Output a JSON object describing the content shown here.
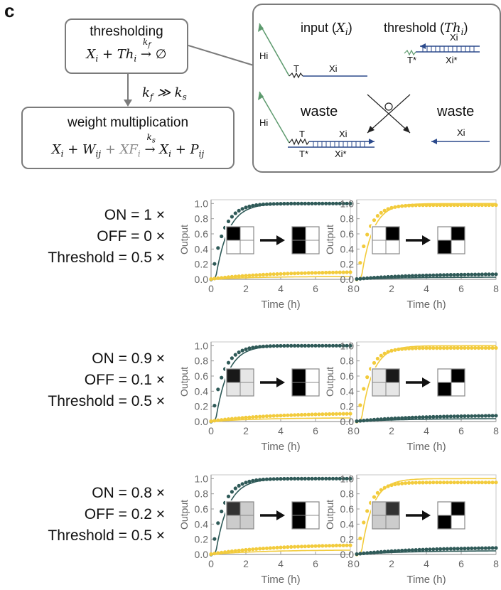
{
  "panel_letter": "c",
  "scheme": {
    "thresholding": {
      "title": "thresholding",
      "eq_pre": "X",
      "eq_rest": "i + Th",
      "rate": "k",
      "rate_sub": "f",
      "product": "∅"
    },
    "rate_relation": "k_f ≫ k_s",
    "weight_multiplication": {
      "title": "weight multiplication",
      "rate": "k",
      "rate_sub": "s"
    },
    "reaction": {
      "input_label": "input (X",
      "input_sub": "i",
      "threshold_label": "threshold (Th",
      "threshold_sub": "i",
      "waste_left": "waste",
      "waste_right": "waste",
      "hi": "Hi",
      "t": "T",
      "t_star": "T*",
      "xi": "Xi",
      "xi_star": "Xi*"
    }
  },
  "conditions": [
    {
      "on": "ON =   1 ×",
      "off": "OFF =   0 ×",
      "threshold": "Threshold = 0.5 ×"
    },
    {
      "on": "ON = 0.9 ×",
      "off": "OFF = 0.1 ×",
      "threshold": "Threshold = 0.5 ×"
    },
    {
      "on": "ON = 0.8 ×",
      "off": "OFF = 0.2 ×",
      "threshold": "Threshold = 0.5 ×"
    }
  ],
  "colors": {
    "dark": "#2f5a58",
    "yellow": "#f2cb3c",
    "axis": "#9a9a9a",
    "box": "#7b7b7b",
    "strand_blue": "#2b4a8c",
    "strand_green": "#5d9a6e"
  },
  "chart_data": [
    {
      "type": "line",
      "row": 1,
      "col": 1,
      "xlabel": "Time (h)",
      "ylabel": "Output",
      "xlim": [
        0,
        8
      ],
      "ylim": [
        0,
        1.05
      ],
      "xticks": [
        0,
        2,
        4,
        6,
        8
      ],
      "yticks": [
        0.0,
        0.2,
        0.4,
        0.6,
        0.8,
        1.0
      ],
      "series": [
        {
          "color": "dark",
          "rate": 1.45,
          "final": 1.0,
          "data_final": 1.0
        },
        {
          "color": "yellow",
          "rate": 0.12,
          "final": 0.04,
          "data_final": 0.1
        }
      ],
      "inset": {
        "input": [
          1,
          0,
          0,
          0
        ],
        "output": [
          1,
          0,
          1,
          0
        ]
      }
    },
    {
      "type": "line",
      "row": 1,
      "col": 2,
      "xlabel": "Time (h)",
      "ylabel": "Output",
      "xlim": [
        0,
        8
      ],
      "ylim": [
        0,
        1.05
      ],
      "xticks": [
        0,
        2,
        4,
        6,
        8
      ],
      "yticks": [
        0.0,
        0.2,
        0.4,
        0.6,
        0.8,
        1.0
      ],
      "series": [
        {
          "color": "yellow",
          "rate": 1.6,
          "final": 1.0,
          "data_final": 0.98
        },
        {
          "color": "dark",
          "rate": 0.12,
          "final": 0.03,
          "data_final": 0.07
        }
      ],
      "inset": {
        "input": [
          0,
          1,
          0,
          0
        ],
        "output": [
          0,
          1,
          1,
          0
        ]
      }
    },
    {
      "type": "line",
      "row": 2,
      "col": 1,
      "xlabel": "Time (h)",
      "ylabel": "Output",
      "xlim": [
        0,
        8
      ],
      "ylim": [
        0,
        1.05
      ],
      "xticks": [
        0,
        2,
        4,
        6,
        8
      ],
      "yticks": [
        0.0,
        0.2,
        0.4,
        0.6,
        0.8,
        1.0
      ],
      "series": [
        {
          "color": "dark",
          "rate": 1.5,
          "final": 1.0,
          "data_final": 1.0
        },
        {
          "color": "yellow",
          "rate": 0.12,
          "final": 0.05,
          "data_final": 0.11
        }
      ],
      "inset": {
        "input": [
          0.9,
          0.1,
          0.1,
          0.1
        ],
        "output": [
          1,
          0,
          1,
          0
        ]
      }
    },
    {
      "type": "line",
      "row": 2,
      "col": 2,
      "xlabel": "Time (h)",
      "ylabel": "Output",
      "xlim": [
        0,
        8
      ],
      "ylim": [
        0,
        1.05
      ],
      "xticks": [
        0,
        2,
        4,
        6,
        8
      ],
      "yticks": [
        0.0,
        0.2,
        0.4,
        0.6,
        0.8,
        1.0
      ],
      "series": [
        {
          "color": "yellow",
          "rate": 1.6,
          "final": 1.0,
          "data_final": 0.97
        },
        {
          "color": "dark",
          "rate": 0.12,
          "final": 0.04,
          "data_final": 0.08
        }
      ],
      "inset": {
        "input": [
          0.1,
          0.9,
          0.1,
          0.1
        ],
        "output": [
          0,
          1,
          1,
          0
        ]
      }
    },
    {
      "type": "line",
      "row": 3,
      "col": 1,
      "xlabel": "Time (h)",
      "ylabel": "Output",
      "xlim": [
        0,
        8
      ],
      "ylim": [
        0,
        1.05
      ],
      "xticks": [
        0,
        2,
        4,
        6,
        8
      ],
      "yticks": [
        0.0,
        0.2,
        0.4,
        0.6,
        0.8,
        1.0
      ],
      "series": [
        {
          "color": "dark",
          "rate": 1.45,
          "final": 1.0,
          "data_final": 1.0
        },
        {
          "color": "yellow",
          "rate": 0.12,
          "final": 0.06,
          "data_final": 0.13
        }
      ],
      "inset": {
        "input": [
          0.8,
          0.2,
          0.2,
          0.2
        ],
        "output": [
          1,
          0,
          1,
          0
        ]
      }
    },
    {
      "type": "line",
      "row": 3,
      "col": 2,
      "xlabel": "Time (h)",
      "ylabel": "Output",
      "xlim": [
        0,
        8
      ],
      "ylim": [
        0,
        1.05
      ],
      "xticks": [
        0,
        2,
        4,
        6,
        8
      ],
      "yticks": [
        0.0,
        0.2,
        0.4,
        0.6,
        0.8,
        1.0
      ],
      "series": [
        {
          "color": "yellow",
          "rate": 1.6,
          "final": 1.0,
          "data_final": 0.95
        },
        {
          "color": "dark",
          "rate": 0.12,
          "final": 0.05,
          "data_final": 0.09
        }
      ],
      "inset": {
        "input": [
          0.2,
          0.8,
          0.2,
          0.2
        ],
        "output": [
          0,
          1,
          1,
          0
        ]
      }
    }
  ]
}
